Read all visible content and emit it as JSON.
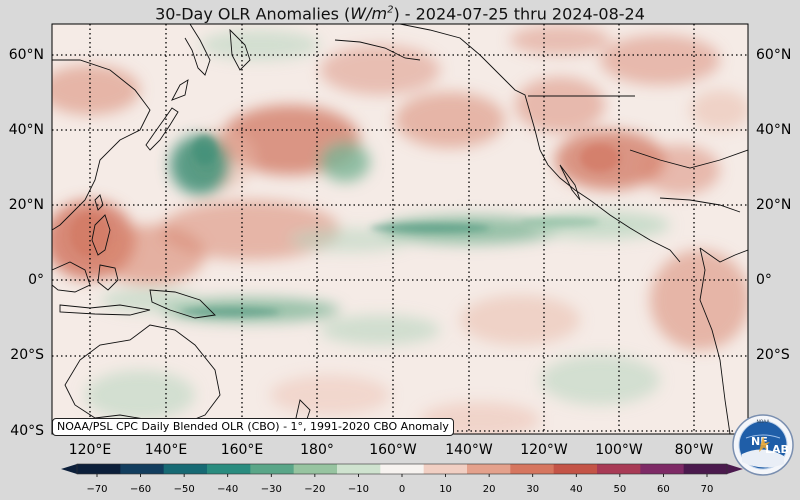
{
  "title": {
    "prefix": "30-Day OLR Anomalies (",
    "units_base": "W/m",
    "units_exp": "2",
    "suffix": ") - 2024-07-25 thru 2024-08-24"
  },
  "axes": {
    "lat_labels": [
      "60°N",
      "40°N",
      "20°N",
      "0°",
      "20°S",
      "40°S"
    ],
    "lon_labels": [
      "120°E",
      "140°E",
      "160°E",
      "180°",
      "160°W",
      "140°W",
      "120°W",
      "100°W",
      "80°W"
    ]
  },
  "source_note": "NOAA/PSL CPC Daily Blended OLR (CBO) - 1°, 1991-2020 CBO Anomaly",
  "colorbar": {
    "ticks": [
      "−70",
      "−60",
      "−50",
      "−40",
      "−30",
      "−20",
      "−10",
      "0",
      "10",
      "20",
      "30",
      "40",
      "50",
      "60",
      "70"
    ],
    "colors": [
      "#0c1f3a",
      "#123d5e",
      "#176a74",
      "#2a8c7f",
      "#5aa688",
      "#97c4a0",
      "#cfe3cf",
      "#f7f3f0",
      "#f1cfc3",
      "#e4a18c",
      "#d6765f",
      "#c45447",
      "#a83a55",
      "#7e2a66",
      "#4b1a4e"
    ]
  },
  "logo": {
    "text_left": "NE",
    "text_right": "LAB",
    "ring_text": "NOAA"
  },
  "map": {
    "region": "Pacific basin, 40°S to 68°N",
    "background": "#f7eee9"
  }
}
